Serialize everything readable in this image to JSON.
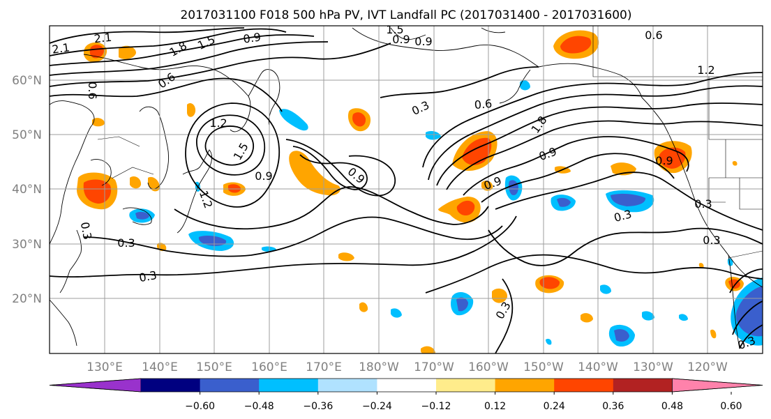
{
  "title": "2017031100 F018 500 hPa PV, IVT Landfall PC (2017031400 - 2017031600)",
  "lat_labels": [
    "60°N",
    "50°N",
    "40°N",
    "30°N",
    "20°N"
  ],
  "lon_labels": [
    "130°E",
    "140°E",
    "150°E",
    "160°E",
    "170°E",
    "180°W",
    "170°W",
    "160°W",
    "150°W",
    "140°W",
    "130°W",
    "120°W"
  ],
  "contour_labels": [
    "2.1",
    "2.1",
    "1.8",
    "1.5",
    "0.9",
    "1.5",
    "0.9",
    "0.9",
    "0.6",
    "0.6",
    "1.2",
    "0.6",
    "0.3",
    "0.6",
    "1.8",
    "1.2",
    "1.5",
    "0.9",
    "0.9",
    "0.9",
    "0.9",
    "0.9",
    "0.3",
    "0.3",
    "0.3",
    "0.3",
    "0.3",
    "0.3",
    "0.3",
    "0.3",
    "1.2"
  ],
  "colorbar": {
    "tick_labels": [
      "−0.60",
      "−0.48",
      "−0.36",
      "−0.24",
      "−0.12",
      "0.12",
      "0.24",
      "0.36",
      "0.48",
      "0.60"
    ],
    "colors": [
      "#9932cc",
      "#000080",
      "#3a5fcd",
      "#00bfff",
      "#b0e2ff",
      "#ffffff",
      "#ffec8b",
      "#ffa500",
      "#ff4500",
      "#b22222",
      "#ff82ab"
    ]
  }
}
